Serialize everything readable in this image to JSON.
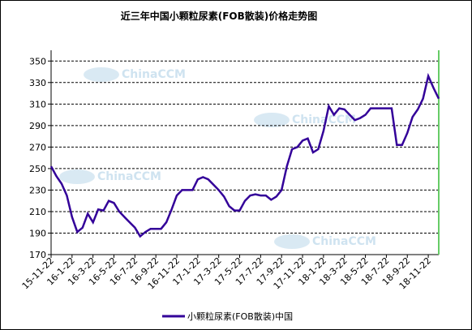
{
  "chart_data": {
    "type": "line",
    "title": "近三年中国小颗粒尿素(FOB散装)价格走势图",
    "watermark": "ChinaCCM",
    "categories": [
      "15-11-22",
      null,
      null,
      null,
      "16-1-22",
      null,
      null,
      null,
      "16-3-22",
      null,
      null,
      null,
      "16-5-22",
      null,
      null,
      null,
      "16-7-22",
      null,
      null,
      null,
      "16-9-22",
      null,
      null,
      null,
      "16-11-22",
      null,
      null,
      null,
      "17-1-22",
      null,
      null,
      null,
      "17-3-22",
      null,
      null,
      null,
      "17-5-22",
      null,
      null,
      null,
      "17-7-22",
      null,
      null,
      null,
      "17-9-22",
      null,
      null,
      null,
      "17-11-22",
      null,
      null,
      null,
      "18-1-22",
      null,
      null,
      null,
      "18-3-22",
      null,
      null,
      null,
      "18-5-22",
      null,
      null,
      null,
      "18-7-22",
      null,
      null,
      null,
      "18-9-22",
      null,
      null,
      null,
      "18-11-22",
      null,
      null
    ],
    "series": [
      {
        "name": "小颗粒尿素(FOB散装)中国",
        "color": "#330099",
        "values": [
          252,
          243,
          236,
          225,
          205,
          191,
          195,
          208,
          200,
          212,
          211,
          220,
          218,
          210,
          205,
          200,
          195,
          187,
          191,
          194,
          194,
          194,
          200,
          212,
          225,
          230,
          230,
          230,
          240,
          242,
          240,
          235,
          230,
          224,
          215,
          211,
          211,
          220,
          225,
          226,
          225,
          225,
          221,
          224,
          230,
          252,
          268,
          270,
          276,
          278,
          265,
          268,
          285,
          308,
          300,
          306,
          305,
          300,
          295,
          297,
          300,
          306,
          306,
          306,
          306,
          306,
          272,
          272,
          283,
          298,
          305,
          315,
          336,
          325,
          315
        ]
      }
    ],
    "ylim": [
      170,
      360
    ],
    "yticks": [
      170,
      190,
      210,
      230,
      250,
      270,
      290,
      310,
      330,
      350
    ],
    "grid": true
  }
}
